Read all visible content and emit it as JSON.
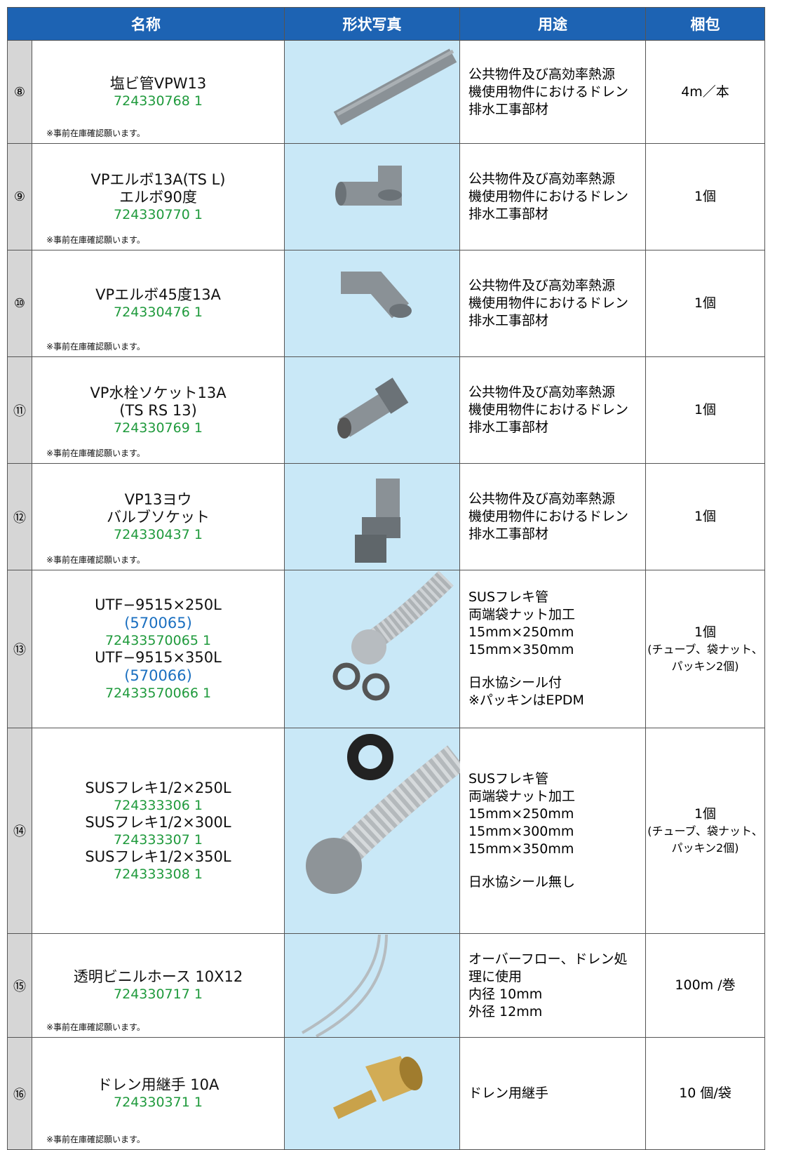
{
  "table": {
    "header": [
      "名称",
      "形状写真",
      "用途",
      "梱包"
    ],
    "rows": [
      {
        "no": "⑧",
        "products": [
          {
            "name": [
              "塩ビ管VPW13"
            ],
            "code": "724330768 1"
          }
        ],
        "note": "※事前在庫確認願います。",
        "usage": [
          [
            "公共物件及び高効率熱源",
            "機使用物件におけるドレン",
            "排水工事部材"
          ]
        ],
        "packing": [
          "4m／本"
        ]
      },
      {
        "no": "⑨",
        "products": [
          {
            "name": [
              "VPエルボ13A(TS L)",
              "エルボ90度"
            ],
            "code": "724330770 1"
          }
        ],
        "note": "※事前在庫確認願います。",
        "usage": [
          [
            "公共物件及び高効率熱源",
            "機使用物件におけるドレン",
            "排水工事部材"
          ]
        ],
        "packing": [
          "1個"
        ]
      },
      {
        "no": "⑩",
        "products": [
          {
            "name": [
              "VPエルボ45度13A"
            ],
            "code": "724330476 1"
          }
        ],
        "note": "※事前在庫確認願います。",
        "usage": [
          [
            "公共物件及び高効率熱源",
            "機使用物件におけるドレン",
            "排水工事部材"
          ]
        ],
        "packing": [
          "1個"
        ]
      },
      {
        "no": "⑪",
        "products": [
          {
            "name": [
              "VP水栓ソケット13A",
              "(TS RS 13)"
            ],
            "code": "724330769 1"
          }
        ],
        "note": "※事前在庫確認願います。",
        "usage": [
          [
            "公共物件及び高効率熱源",
            "機使用物件におけるドレン",
            "排水工事部材"
          ]
        ],
        "packing": [
          "1個"
        ]
      },
      {
        "no": "⑫",
        "products": [
          {
            "name": [
              "VP13ヨウ",
              "バルブソケット"
            ],
            "code": "724330437 1"
          }
        ],
        "note": "※事前在庫確認願います。",
        "usage": [
          [
            "公共物件及び高効率熱源",
            "機使用物件におけるドレン",
            "排水工事部材"
          ]
        ],
        "packing": [
          "1個"
        ]
      },
      {
        "no": "⑬",
        "products": [
          {
            "name": [
              "UTF−9515×250L"
            ],
            "part": "(570065)",
            "code": "72433570065 1"
          },
          {
            "name": [
              "UTF−9515×350L"
            ],
            "part": "(570066)",
            "code": "72433570066 1"
          }
        ],
        "usage": [
          [
            "SUSフレキ管",
            "両端袋ナット加工",
            "15mm×250mm",
            "15mm×350mm"
          ],
          [
            "日水協シール付",
            "※パッキンはEPDM"
          ]
        ],
        "packing": [
          "1個",
          "(チューブ、袋ナット、",
          "パッキン2個)"
        ]
      },
      {
        "no": "⑭",
        "products": [
          {
            "name": [
              "SUSフレキ1/2×250L"
            ],
            "code": "724333306 1"
          },
          {
            "name": [
              "SUSフレキ1/2×300L"
            ],
            "code": "724333307 1"
          },
          {
            "name": [
              "SUSフレキ1/2×350L"
            ],
            "code": "724333308 1"
          }
        ],
        "usage": [
          [
            "SUSフレキ管",
            "両端袋ナット加工",
            "15mm×250mm",
            "15mm×300mm",
            "15mm×350mm"
          ],
          [
            "日水協シール無し"
          ]
        ],
        "packing": [
          "1個",
          "(チューブ、袋ナット、",
          "パッキン2個)"
        ]
      },
      {
        "no": "⑮",
        "products": [
          {
            "name": [
              "透明ビニルホース 10X12"
            ],
            "code": "724330717 1"
          }
        ],
        "note": "※事前在庫確認願います。",
        "usage": [
          [
            "オーバーフロー、ドレン処",
            "理に使用",
            "内径 10mm",
            "外径 12mm"
          ]
        ],
        "packing": [
          "100m /巻"
        ]
      },
      {
        "no": "⑯",
        "products": [
          {
            "name": [
              "ドレン用継手 10A"
            ],
            "code": "724330371 1"
          }
        ],
        "note": "※事前在庫確認願います。",
        "usage": [
          [
            "ドレン用継手"
          ]
        ],
        "packing": [
          "10 個/袋"
        ]
      }
    ]
  }
}
